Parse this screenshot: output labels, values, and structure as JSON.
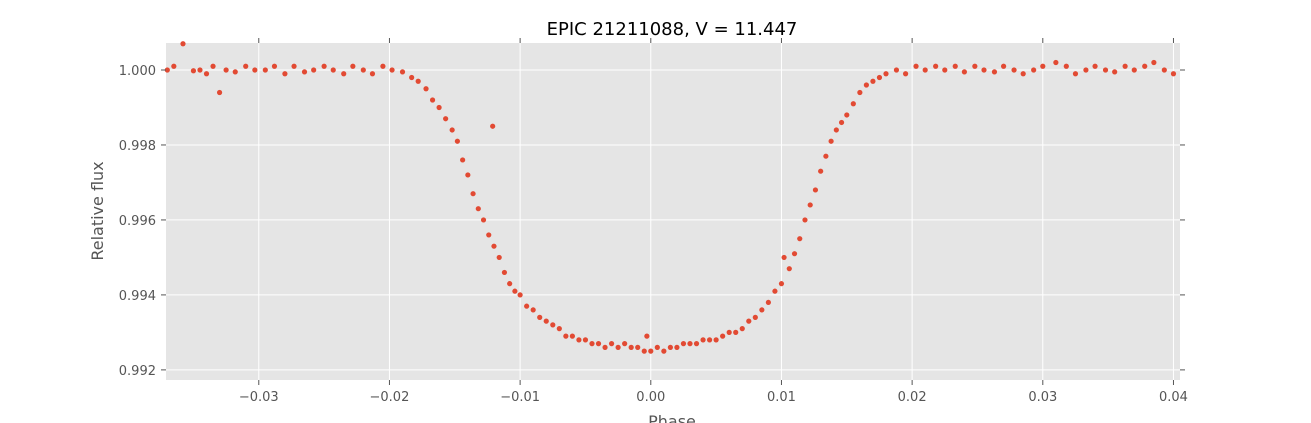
{
  "chart_data": {
    "type": "scatter",
    "title": "EPIC 21211088, V = 11.447",
    "xlabel": "Phase",
    "ylabel": "Relative flux",
    "color": "#E24A33",
    "grid": true,
    "xlim": [
      -0.0371,
      0.0405
    ],
    "ylim": [
      0.99173,
      1.00072
    ],
    "xticks": [
      {
        "value": -0.03,
        "label": "−0.03"
      },
      {
        "value": -0.02,
        "label": "−0.02"
      },
      {
        "value": -0.01,
        "label": "−0.01"
      },
      {
        "value": 0,
        "label": "0.00"
      },
      0.01,
      0.02,
      0.03,
      0.04
    ],
    "yticks": [
      0.992,
      0.994,
      0.996,
      0.998,
      {
        "value": 1,
        "label": "1.000"
      }
    ],
    "x": [
      -0.037,
      -0.0365,
      -0.0358,
      -0.035,
      -0.0345,
      -0.034,
      -0.0335,
      -0.033,
      -0.0325,
      -0.0318,
      -0.031,
      -0.0303,
      -0.0295,
      -0.0288,
      -0.028,
      -0.0273,
      -0.0265,
      -0.0258,
      -0.025,
      -0.0243,
      -0.0235,
      -0.0228,
      -0.022,
      -0.0213,
      -0.0205,
      -0.0198,
      -0.019,
      -0.0183,
      -0.0178,
      -0.0172,
      -0.0167,
      -0.0162,
      -0.0157,
      -0.0152,
      -0.0148,
      -0.0144,
      -0.014,
      -0.0136,
      -0.0132,
      -0.0128,
      -0.0121,
      -0.0124,
      -0.012,
      -0.0116,
      -0.0112,
      -0.0108,
      -0.0104,
      -0.01,
      -0.0095,
      -0.009,
      -0.0085,
      -0.008,
      -0.0075,
      -0.007,
      -0.0065,
      -0.006,
      -0.0055,
      -0.005,
      -0.0045,
      -0.004,
      -0.0035,
      -0.003,
      -0.0025,
      -0.002,
      -0.0015,
      -0.001,
      -0.0005,
      -0.0003,
      0,
      0.0005,
      0.001,
      0.0015,
      0.002,
      0.0025,
      0.003,
      0.0035,
      0.004,
      0.0045,
      0.005,
      0.0055,
      0.006,
      0.0065,
      0.007,
      0.0075,
      0.008,
      0.0085,
      0.009,
      0.0095,
      0.01,
      0.0102,
      0.0106,
      0.011,
      0.0114,
      0.0118,
      0.0122,
      0.0126,
      0.013,
      0.0134,
      0.0138,
      0.0142,
      0.0146,
      0.015,
      0.0155,
      0.016,
      0.0165,
      0.017,
      0.0175,
      0.018,
      0.0188,
      0.0195,
      0.0203,
      0.021,
      0.0218,
      0.0225,
      0.0233,
      0.024,
      0.0248,
      0.0255,
      0.0263,
      0.027,
      0.0278,
      0.0285,
      0.0293,
      0.03,
      0.031,
      0.0318,
      0.0325,
      0.0333,
      0.034,
      0.0348,
      0.0355,
      0.0363,
      0.037,
      0.0378,
      0.0385,
      0.0393,
      0.04
    ],
    "values": [
      1,
      1.0001,
      1.0007,
      0.99998,
      1,
      0.9999,
      1.0001,
      0.9994,
      1,
      0.99995,
      1.0001,
      1,
      1,
      1.0001,
      0.9999,
      1.0001,
      0.99995,
      1,
      1.0001,
      1,
      0.9999,
      1.0001,
      1,
      0.9999,
      1.0001,
      1,
      0.99995,
      0.9998,
      0.9997,
      0.9995,
      0.9992,
      0.999,
      0.9987,
      0.9984,
      0.9981,
      0.9976,
      0.9972,
      0.9967,
      0.9963,
      0.996,
      0.9985,
      0.9956,
      0.9953,
      0.995,
      0.9946,
      0.9943,
      0.9941,
      0.994,
      0.9937,
      0.9936,
      0.9934,
      0.9933,
      0.9932,
      0.9931,
      0.9929,
      0.9929,
      0.9928,
      0.9928,
      0.9927,
      0.9927,
      0.9926,
      0.9927,
      0.9926,
      0.9927,
      0.9926,
      0.9926,
      0.9925,
      0.9929,
      0.9925,
      0.9926,
      0.9925,
      0.9926,
      0.9926,
      0.9927,
      0.9927,
      0.9927,
      0.9928,
      0.9928,
      0.9928,
      0.9929,
      0.993,
      0.993,
      0.9931,
      0.9933,
      0.9934,
      0.9936,
      0.9938,
      0.9941,
      0.9943,
      0.995,
      0.9947,
      0.9951,
      0.9955,
      0.996,
      0.9964,
      0.9968,
      0.9973,
      0.9977,
      0.9981,
      0.9984,
      0.9986,
      0.9988,
      0.9991,
      0.9994,
      0.9996,
      0.9997,
      0.9998,
      0.9999,
      1,
      0.9999,
      1.0001,
      1,
      1.0001,
      1,
      1.0001,
      0.99995,
      1.0001,
      1,
      0.99995,
      1.0001,
      1,
      0.9999,
      1,
      1.0001,
      1.0002,
      1.0001,
      0.9999,
      1,
      1.0001,
      1,
      0.99995,
      1.0001,
      1,
      1.0001,
      1.0002,
      1,
      0.9999
    ]
  }
}
